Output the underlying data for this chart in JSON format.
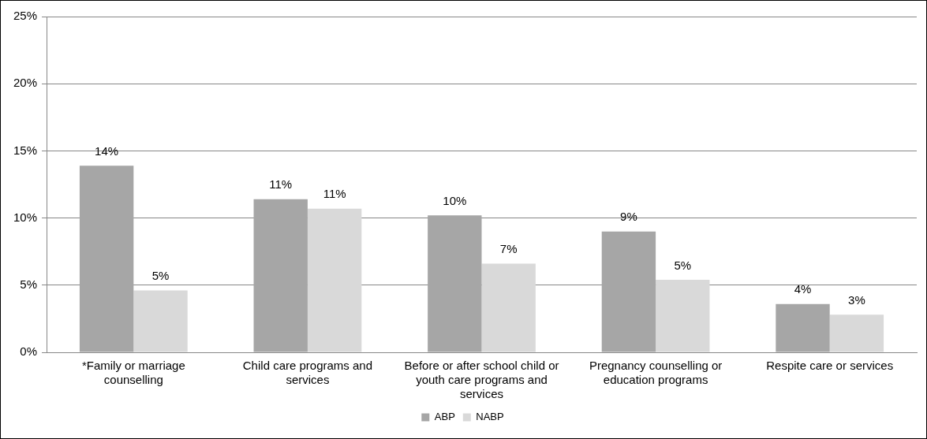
{
  "chart_data": {
    "type": "bar",
    "categories": [
      "*Family or marriage counselling",
      "Child care programs and services",
      "Before or after school child or youth care programs and services",
      "Pregnancy counselling or education programs",
      "Respite care or services"
    ],
    "series": [
      {
        "name": "ABP",
        "color": "#a6a6a6",
        "values": [
          13.9,
          11.4,
          10.2,
          9.0,
          3.6
        ],
        "value_labels": [
          "14%",
          "11%",
          "10%",
          "9%",
          "4%"
        ]
      },
      {
        "name": "NABP",
        "color": "#d9d9d9",
        "values": [
          4.6,
          10.7,
          6.6,
          5.4,
          2.8
        ],
        "value_labels": [
          "5%",
          "11%",
          "7%",
          "5%",
          "3%"
        ]
      }
    ],
    "ylim": [
      0,
      25
    ],
    "yticks": [
      {
        "value": 0,
        "label": "0%"
      },
      {
        "value": 5,
        "label": "5%"
      },
      {
        "value": 10,
        "label": "10%"
      },
      {
        "value": 15,
        "label": "15%"
      },
      {
        "value": 20,
        "label": "20%"
      },
      {
        "value": 25,
        "label": "25%"
      }
    ],
    "grid": "y",
    "legend": "bottom"
  }
}
